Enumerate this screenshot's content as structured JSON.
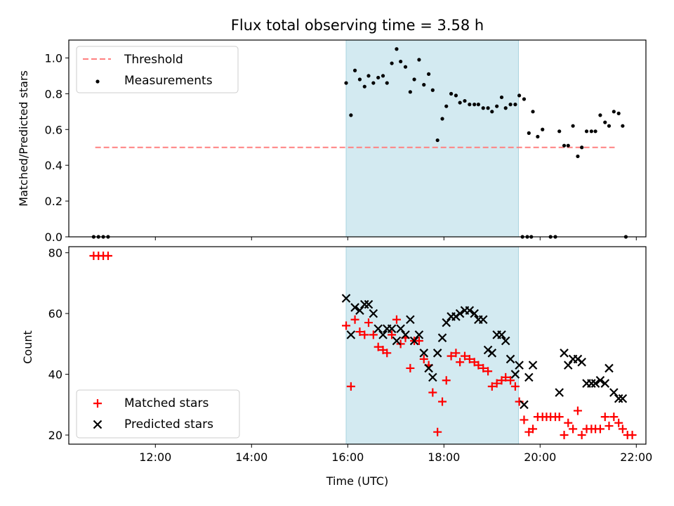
{
  "chart_data": {
    "type": "scatter",
    "title": "Flux total observing time = 3.58 h",
    "xlabel": "Time (UTC)",
    "x_unit": "hours UTC",
    "xlim": [
      "10:12",
      "22:12"
    ],
    "xticks": [
      "12:00",
      "14:00",
      "16:00",
      "18:00",
      "20:00",
      "22:00"
    ],
    "highlight_span": {
      "start": "15:58",
      "end": "19:33",
      "color": "#d3eaf1"
    },
    "top_panel": {
      "ylabel": "Matched/Predicted stars",
      "ylim": [
        0,
        1.1
      ],
      "yticks": [
        "0.0",
        "0.2",
        "0.4",
        "0.6",
        "0.8",
        "1.0"
      ],
      "legend": {
        "position": "upper-left",
        "entries": [
          "Threshold",
          "Measurements"
        ]
      },
      "threshold": {
        "name": "Threshold",
        "value": 0.5,
        "x_start": "10:45",
        "x_end": "21:33",
        "color": "#ff8080"
      },
      "measurements": {
        "name": "Measurements",
        "color": "#000000",
        "points": [
          [
            "10:43",
            0
          ],
          [
            "10:49",
            0
          ],
          [
            "10:55",
            0
          ],
          [
            "11:01",
            0
          ],
          [
            "15:58",
            0.86
          ],
          [
            "16:04",
            0.68
          ],
          [
            "16:09",
            0.93
          ],
          [
            "16:15",
            0.88
          ],
          [
            "16:21",
            0.84
          ],
          [
            "16:26",
            0.9
          ],
          [
            "16:32",
            0.86
          ],
          [
            "16:38",
            0.89
          ],
          [
            "16:44",
            0.9
          ],
          [
            "16:49",
            0.86
          ],
          [
            "16:55",
            0.97
          ],
          [
            "17:01",
            1.05
          ],
          [
            "17:06",
            0.98
          ],
          [
            "17:12",
            0.95
          ],
          [
            "17:18",
            0.81
          ],
          [
            "17:23",
            0.88
          ],
          [
            "17:29",
            0.99
          ],
          [
            "17:35",
            0.85
          ],
          [
            "17:41",
            0.91
          ],
          [
            "17:46",
            0.82
          ],
          [
            "17:52",
            0.54
          ],
          [
            "17:58",
            0.66
          ],
          [
            "18:03",
            0.73
          ],
          [
            "18:09",
            0.8
          ],
          [
            "18:15",
            0.79
          ],
          [
            "18:20",
            0.75
          ],
          [
            "18:26",
            0.76
          ],
          [
            "18:32",
            0.74
          ],
          [
            "18:38",
            0.74
          ],
          [
            "18:43",
            0.74
          ],
          [
            "18:49",
            0.72
          ],
          [
            "18:55",
            0.72
          ],
          [
            "19:00",
            0.7
          ],
          [
            "19:06",
            0.73
          ],
          [
            "19:12",
            0.78
          ],
          [
            "19:17",
            0.72
          ],
          [
            "19:23",
            0.74
          ],
          [
            "19:29",
            0.74
          ],
          [
            "19:34",
            0.79
          ],
          [
            "19:40",
            0.77
          ],
          [
            "19:46",
            0.58
          ],
          [
            "19:51",
            0.7
          ],
          [
            "19:57",
            0.56
          ],
          [
            "20:03",
            0.6
          ],
          [
            "19:38",
            0
          ],
          [
            "19:44",
            0
          ],
          [
            "19:49",
            0
          ],
          [
            "20:13",
            0
          ],
          [
            "20:19",
            0
          ],
          [
            "20:24",
            0.59
          ],
          [
            "20:30",
            0.51
          ],
          [
            "20:35",
            0.51
          ],
          [
            "20:41",
            0.62
          ],
          [
            "20:47",
            0.45
          ],
          [
            "20:52",
            0.5
          ],
          [
            "20:58",
            0.59
          ],
          [
            "21:04",
            0.59
          ],
          [
            "21:09",
            0.59
          ],
          [
            "21:15",
            0.68
          ],
          [
            "21:21",
            0.64
          ],
          [
            "21:26",
            0.62
          ],
          [
            "21:32",
            0.7
          ],
          [
            "21:38",
            0.69
          ],
          [
            "21:43",
            0.62
          ],
          [
            "21:47",
            0
          ]
        ]
      }
    },
    "bottom_panel": {
      "ylabel": "Count",
      "ylim": [
        17,
        82
      ],
      "yticks": [
        "20",
        "40",
        "60",
        "80"
      ],
      "legend": {
        "position": "lower-left",
        "entries": [
          "Matched stars",
          "Predicted stars"
        ]
      },
      "series": [
        {
          "name": "Matched stars",
          "marker": "plus",
          "color": "#ff0000",
          "points": [
            [
              "10:43",
              79
            ],
            [
              "10:49",
              79
            ],
            [
              "10:55",
              79
            ],
            [
              "11:01",
              79
            ],
            [
              "15:58",
              56
            ],
            [
              "16:04",
              36
            ],
            [
              "16:09",
              58
            ],
            [
              "16:15",
              54
            ],
            [
              "16:21",
              53
            ],
            [
              "16:26",
              57
            ],
            [
              "16:32",
              53
            ],
            [
              "16:38",
              49
            ],
            [
              "16:44",
              48
            ],
            [
              "16:49",
              47
            ],
            [
              "16:55",
              53
            ],
            [
              "17:01",
              58
            ],
            [
              "17:06",
              50
            ],
            [
              "17:12",
              52
            ],
            [
              "17:18",
              42
            ],
            [
              "17:23",
              51
            ],
            [
              "17:29",
              51
            ],
            [
              "17:35",
              45
            ],
            [
              "17:41",
              43
            ],
            [
              "17:46",
              34
            ],
            [
              "17:52",
              21
            ],
            [
              "17:58",
              31
            ],
            [
              "18:03",
              38
            ],
            [
              "18:09",
              46
            ],
            [
              "18:15",
              47
            ],
            [
              "18:20",
              44
            ],
            [
              "18:26",
              46
            ],
            [
              "18:32",
              45
            ],
            [
              "18:38",
              44
            ],
            [
              "18:43",
              43
            ],
            [
              "18:49",
              42
            ],
            [
              "18:55",
              41
            ],
            [
              "19:00",
              36
            ],
            [
              "19:06",
              37
            ],
            [
              "19:12",
              38
            ],
            [
              "19:17",
              39
            ],
            [
              "19:23",
              38
            ],
            [
              "19:29",
              36
            ],
            [
              "19:34",
              31
            ],
            [
              "19:40",
              25
            ],
            [
              "19:46",
              21
            ],
            [
              "19:51",
              22
            ],
            [
              "19:57",
              26
            ],
            [
              "20:03",
              26
            ],
            [
              "20:08",
              26
            ],
            [
              "20:13",
              26
            ],
            [
              "20:19",
              26
            ],
            [
              "20:24",
              26
            ],
            [
              "20:30",
              20
            ],
            [
              "20:35",
              24
            ],
            [
              "20:41",
              22
            ],
            [
              "20:47",
              28
            ],
            [
              "20:52",
              20
            ],
            [
              "20:58",
              22
            ],
            [
              "21:04",
              22
            ],
            [
              "21:09",
              22
            ],
            [
              "21:15",
              22
            ],
            [
              "21:21",
              26
            ],
            [
              "21:26",
              23
            ],
            [
              "21:32",
              26
            ],
            [
              "21:38",
              24
            ],
            [
              "21:43",
              22
            ],
            [
              "21:49",
              20
            ],
            [
              "21:55",
              20
            ]
          ]
        },
        {
          "name": "Predicted stars",
          "marker": "x",
          "color": "#000000",
          "points": [
            [
              "15:58",
              65
            ],
            [
              "16:04",
              53
            ],
            [
              "16:09",
              62
            ],
            [
              "16:15",
              61
            ],
            [
              "16:21",
              63
            ],
            [
              "16:26",
              63
            ],
            [
              "16:32",
              60
            ],
            [
              "16:38",
              55
            ],
            [
              "16:44",
              53
            ],
            [
              "16:49",
              55
            ],
            [
              "16:55",
              55
            ],
            [
              "17:01",
              51
            ],
            [
              "17:06",
              55
            ],
            [
              "17:12",
              53
            ],
            [
              "17:18",
              58
            ],
            [
              "17:23",
              51
            ],
            [
              "17:29",
              53
            ],
            [
              "17:35",
              47
            ],
            [
              "17:41",
              42
            ],
            [
              "17:46",
              39
            ],
            [
              "17:52",
              47
            ],
            [
              "17:58",
              52
            ],
            [
              "18:03",
              57
            ],
            [
              "18:09",
              59
            ],
            [
              "18:15",
              59
            ],
            [
              "18:20",
              60
            ],
            [
              "18:26",
              61
            ],
            [
              "18:32",
              61
            ],
            [
              "18:38",
              60
            ],
            [
              "18:43",
              58
            ],
            [
              "18:49",
              58
            ],
            [
              "18:55",
              48
            ],
            [
              "19:00",
              47
            ],
            [
              "19:06",
              53
            ],
            [
              "19:12",
              53
            ],
            [
              "19:17",
              51
            ],
            [
              "19:23",
              45
            ],
            [
              "19:29",
              40
            ],
            [
              "19:34",
              43
            ],
            [
              "19:40",
              30
            ],
            [
              "19:46",
              39
            ],
            [
              "19:51",
              43
            ],
            [
              "20:24",
              34
            ],
            [
              "20:30",
              47
            ],
            [
              "20:35",
              43
            ],
            [
              "20:41",
              45
            ],
            [
              "20:47",
              45
            ],
            [
              "20:52",
              44
            ],
            [
              "20:58",
              37
            ],
            [
              "21:04",
              37
            ],
            [
              "21:09",
              37
            ],
            [
              "21:15",
              38
            ],
            [
              "21:21",
              37
            ],
            [
              "21:26",
              42
            ],
            [
              "21:32",
              34
            ],
            [
              "21:38",
              32
            ],
            [
              "21:43",
              32
            ]
          ]
        }
      ]
    }
  }
}
